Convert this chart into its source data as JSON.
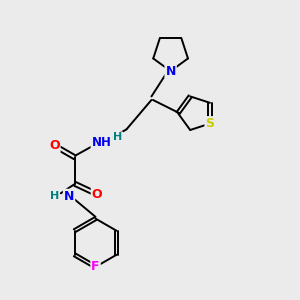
{
  "bg_color": "#ebebeb",
  "bond_color": "#000000",
  "colors": {
    "N": "#0000ee",
    "O": "#ff0000",
    "S": "#cccc00",
    "F": "#ff00ff",
    "H": "#008080",
    "C": "#000000"
  }
}
